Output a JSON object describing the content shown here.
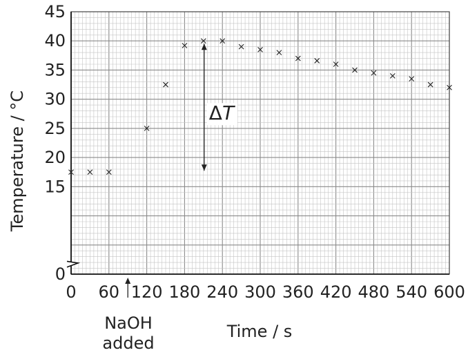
{
  "chart_data": {
    "type": "scatter",
    "title": "",
    "xlabel": "Time / s",
    "ylabel": "Temperature / °C",
    "xlim": [
      0,
      600
    ],
    "ylim": [
      0,
      45
    ],
    "y_axis_break": true,
    "grid": true,
    "marker": "x",
    "x_ticks": [
      "0",
      "60",
      "120",
      "180",
      "240",
      "300",
      "360",
      "420",
      "480",
      "540",
      "600"
    ],
    "y_ticks": [
      "0",
      "15",
      "20",
      "25",
      "30",
      "35",
      "40",
      "45"
    ],
    "series": [
      {
        "x": [
          0,
          30,
          60,
          120,
          150,
          180,
          210,
          240,
          270,
          300,
          330,
          360,
          390,
          420,
          450,
          480,
          510,
          540,
          570,
          600
        ],
        "y": [
          17.5,
          17.5,
          17.5,
          25,
          32.5,
          39.2,
          40,
          40,
          39,
          38.5,
          38,
          37,
          36.6,
          36,
          35,
          34.5,
          34,
          33.5,
          32.5,
          32
        ]
      }
    ],
    "annotations": {
      "naoh_line1": "NaOH",
      "naoh_line2": "added",
      "naoh_time": 90,
      "delta_symbol": "Δ",
      "delta_var": "T",
      "delta_x": 210,
      "delta_y_low": 17.5,
      "delta_y_high": 40
    }
  }
}
